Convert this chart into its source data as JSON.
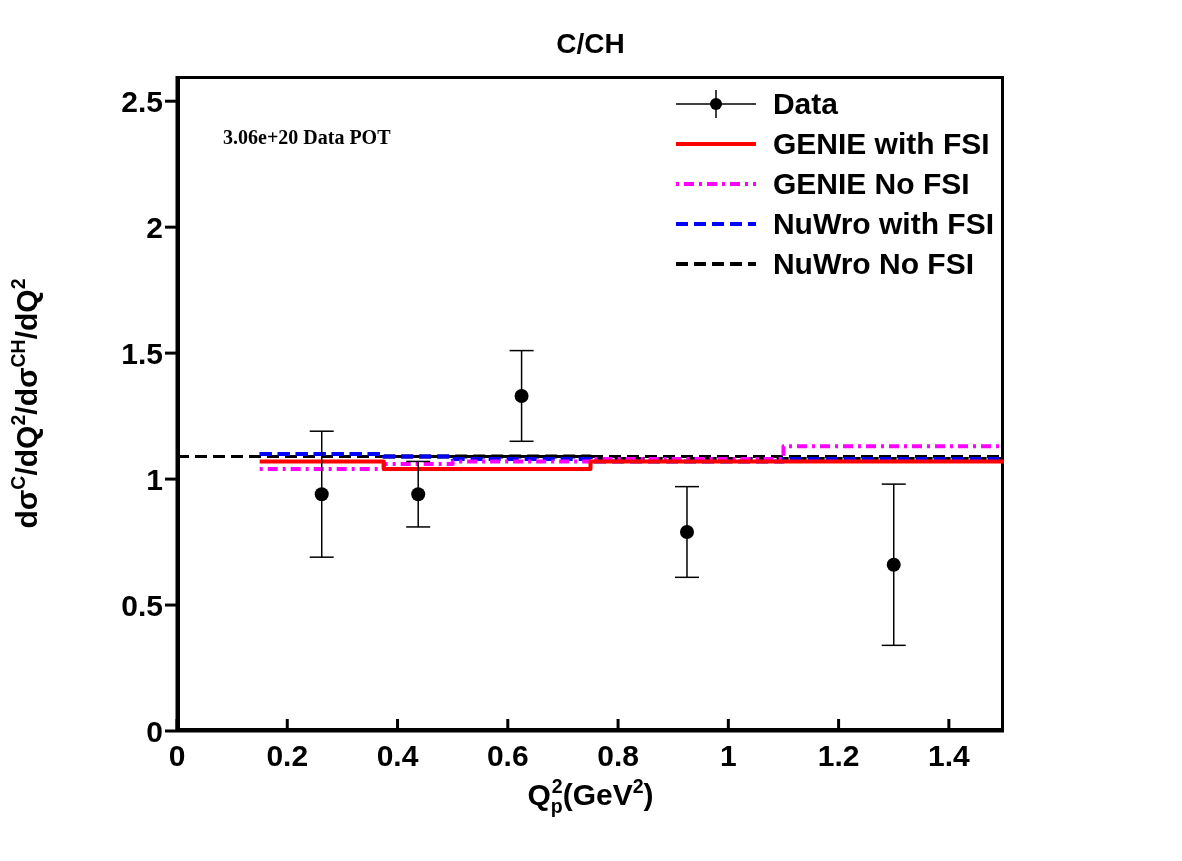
{
  "chart_data": {
    "type": "step",
    "title": "C/CH",
    "xlabel": "Q$_{p}$$^{2}$(GeV$^{2}$)",
    "ylabel": "dσ$^{C}$/dQ$^{2}$/dσ$^{CH}$/dQ$^{2}$",
    "annotations": [
      "3.06e+20 Data POT"
    ],
    "xlim": [
      0,
      1.5
    ],
    "xticks": [
      0,
      0.2,
      0.4,
      0.6,
      0.8,
      1,
      1.2,
      1.4
    ],
    "ylim": [
      0,
      2.6
    ],
    "yticks": [
      0,
      0.5,
      1,
      1.5,
      2,
      2.5
    ],
    "legend": "top right",
    "series": [
      {
        "name": "Data",
        "type": "scatter",
        "color": "#000000",
        "marker": "circle",
        "x": [
          0.2625,
          0.4375,
          0.625,
          0.925,
          1.3
        ],
        "values": [
          0.94,
          0.94,
          1.33,
          0.79,
          0.66
        ],
        "errors": [
          0.25,
          0.13,
          0.18,
          0.18,
          0.32
        ]
      },
      {
        "name": "GENIE with FSI",
        "color": "#ff0000",
        "line_style": "solid",
        "x": [
          0.15,
          0.375,
          0.5,
          0.75,
          1.1,
          1.5
        ],
        "values": [
          1.07,
          1.04,
          1.04,
          1.07,
          1.07,
          1.07
        ]
      },
      {
        "name": "GENIE No FSI",
        "color": "#ff00ff",
        "line_style": "dotted",
        "x": [
          0.15,
          0.375,
          0.5,
          0.75,
          1.1,
          1.5
        ],
        "values": [
          1.04,
          1.06,
          1.07,
          1.08,
          1.13,
          1.13
        ]
      },
      {
        "name": "NuWro with FSI",
        "color": "#0000ff",
        "line_style": "dashed",
        "x": [
          0.15,
          0.375,
          0.5,
          0.75,
          1.1,
          1.5
        ],
        "values": [
          1.1,
          1.09,
          1.08,
          1.07,
          1.08,
          1.08
        ]
      },
      {
        "name": "NuWro No FSI",
        "color": "#000000",
        "line_style": "dashed",
        "x": [
          0.15,
          0.375,
          0.5,
          0.75,
          1.1,
          1.5
        ],
        "values": [
          1.1,
          1.09,
          1.09,
          1.08,
          1.08,
          1.08
        ]
      }
    ],
    "ref_lines": [
      {
        "axis": "y",
        "value": 1.09,
        "color": "#000000",
        "line_style": "dashed"
      }
    ]
  }
}
